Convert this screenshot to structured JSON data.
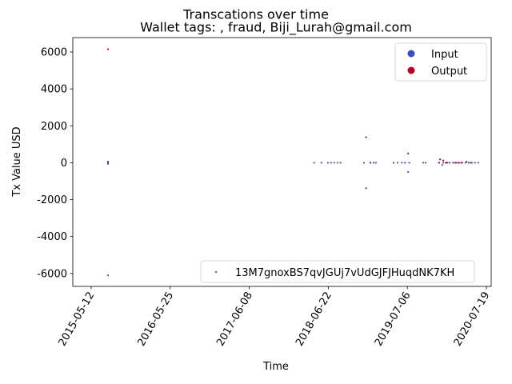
{
  "chart_data": {
    "type": "scatter",
    "title": "Transcations over time",
    "subtitle": "Wallet tags: , fraud, Biji_Lurah@gmail.com",
    "xlabel": "Time",
    "ylabel": "Tx Value USD",
    "xlim": [
      "2015-02-13",
      "2020-08-11"
    ],
    "ylim": [
      -6700,
      6780
    ],
    "x_ticks": [
      "2015-05-12",
      "2016-05-25",
      "2017-06-08",
      "2018-06-22",
      "2019-07-06",
      "2020-07-19"
    ],
    "y_ticks": [
      -6000,
      -4000,
      -2000,
      0,
      2000,
      4000,
      6000
    ],
    "grid": false,
    "legend": {
      "placement": "top-right",
      "entries": [
        {
          "label": "Input",
          "color": "#3b4cc0"
        },
        {
          "label": "Output",
          "color": "#b40426"
        }
      ]
    },
    "legend_wallet": {
      "placement": "bottom-right",
      "label": "13M7gnoxBS7qvJGUj7vUdGJFJHuqdNK7KH",
      "color": "#2ca02c"
    },
    "series": [
      {
        "name": "Input",
        "color": "#3b4cc0",
        "points": [
          {
            "x": "2015-08-01",
            "y": -6100
          },
          {
            "x": "2015-08-01",
            "y": 0
          },
          {
            "x": "2015-08-01",
            "y": -60
          },
          {
            "x": "2018-04-15",
            "y": 0
          },
          {
            "x": "2018-05-20",
            "y": 0
          },
          {
            "x": "2018-06-20",
            "y": 0
          },
          {
            "x": "2018-07-05",
            "y": 0
          },
          {
            "x": "2018-07-20",
            "y": 0
          },
          {
            "x": "2018-08-05",
            "y": 0
          },
          {
            "x": "2018-08-20",
            "y": 0
          },
          {
            "x": "2018-12-10",
            "y": 0
          },
          {
            "x": "2018-12-20",
            "y": -1380
          },
          {
            "x": "2019-01-10",
            "y": 0
          },
          {
            "x": "2019-01-25",
            "y": 0
          },
          {
            "x": "2019-02-05",
            "y": 0
          },
          {
            "x": "2019-05-01",
            "y": 0
          },
          {
            "x": "2019-05-20",
            "y": 0
          },
          {
            "x": "2019-06-10",
            "y": 0
          },
          {
            "x": "2019-06-25",
            "y": 0
          },
          {
            "x": "2019-07-10",
            "y": -500
          },
          {
            "x": "2019-07-15",
            "y": 0
          },
          {
            "x": "2019-09-20",
            "y": 0
          },
          {
            "x": "2019-10-01",
            "y": 0
          },
          {
            "x": "2019-12-05",
            "y": 0
          },
          {
            "x": "2019-12-20",
            "y": -120
          },
          {
            "x": "2019-12-25",
            "y": 0
          },
          {
            "x": "2020-01-05",
            "y": 0
          },
          {
            "x": "2020-01-15",
            "y": 0
          },
          {
            "x": "2020-01-25",
            "y": 0
          },
          {
            "x": "2020-02-10",
            "y": 0
          },
          {
            "x": "2020-02-25",
            "y": 0
          },
          {
            "x": "2020-03-10",
            "y": 0
          },
          {
            "x": "2020-03-25",
            "y": 0
          },
          {
            "x": "2020-04-10",
            "y": 0
          },
          {
            "x": "2020-04-25",
            "y": 0
          },
          {
            "x": "2020-05-10",
            "y": 0
          },
          {
            "x": "2020-05-25",
            "y": 0
          },
          {
            "x": "2020-06-10",
            "y": 0
          }
        ]
      },
      {
        "name": "Output",
        "color": "#b40426",
        "points": [
          {
            "x": "2015-08-01",
            "y": 6150
          },
          {
            "x": "2015-08-01",
            "y": 60
          },
          {
            "x": "2018-12-20",
            "y": 1380
          },
          {
            "x": "2019-01-10",
            "y": 0
          },
          {
            "x": "2019-07-10",
            "y": 500
          },
          {
            "x": "2019-12-05",
            "y": 0
          },
          {
            "x": "2019-12-10",
            "y": 180
          },
          {
            "x": "2019-12-25",
            "y": 120
          },
          {
            "x": "2020-01-10",
            "y": 0
          },
          {
            "x": "2020-02-20",
            "y": 0
          },
          {
            "x": "2020-03-05",
            "y": 0
          },
          {
            "x": "2020-03-20",
            "y": 0
          },
          {
            "x": "2020-04-15",
            "y": 60
          },
          {
            "x": "2020-05-05",
            "y": 0
          }
        ]
      }
    ]
  }
}
